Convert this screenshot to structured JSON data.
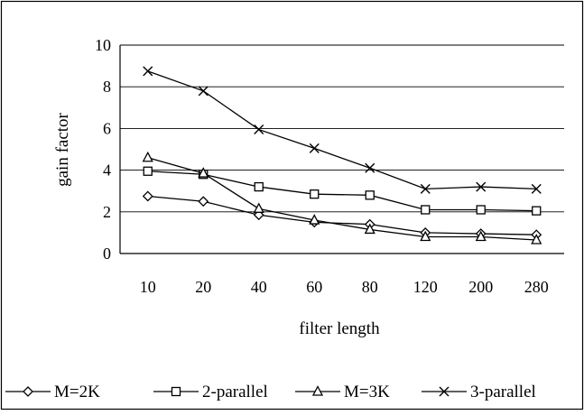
{
  "chart_data": {
    "type": "line",
    "title": "",
    "xlabel": "filter length",
    "ylabel": "gain factor",
    "categories": [
      "10",
      "20",
      "40",
      "60",
      "80",
      "120",
      "200",
      "280"
    ],
    "ylim": [
      0,
      10
    ],
    "yticks": [
      "0",
      "2",
      "4",
      "6",
      "8",
      "10"
    ],
    "grid": "horizontal",
    "legend_position": "bottom",
    "series": [
      {
        "name": "M=2K",
        "marker": "diamond",
        "values": [
          2.75,
          2.5,
          1.85,
          1.5,
          1.4,
          1.0,
          0.95,
          0.9
        ]
      },
      {
        "name": "2-parallel",
        "marker": "square",
        "values": [
          3.95,
          3.8,
          3.2,
          2.85,
          2.8,
          2.1,
          2.1,
          2.05
        ]
      },
      {
        "name": "M=3K",
        "marker": "triangle",
        "values": [
          4.6,
          3.85,
          2.15,
          1.6,
          1.15,
          0.8,
          0.8,
          0.65
        ]
      },
      {
        "name": "3-parallel",
        "marker": "x",
        "values": [
          8.75,
          7.8,
          5.95,
          5.05,
          4.1,
          3.1,
          3.2,
          3.1
        ]
      }
    ],
    "colors": {
      "line": "#000000",
      "background": "#ffffff",
      "grid": "#000000"
    }
  }
}
